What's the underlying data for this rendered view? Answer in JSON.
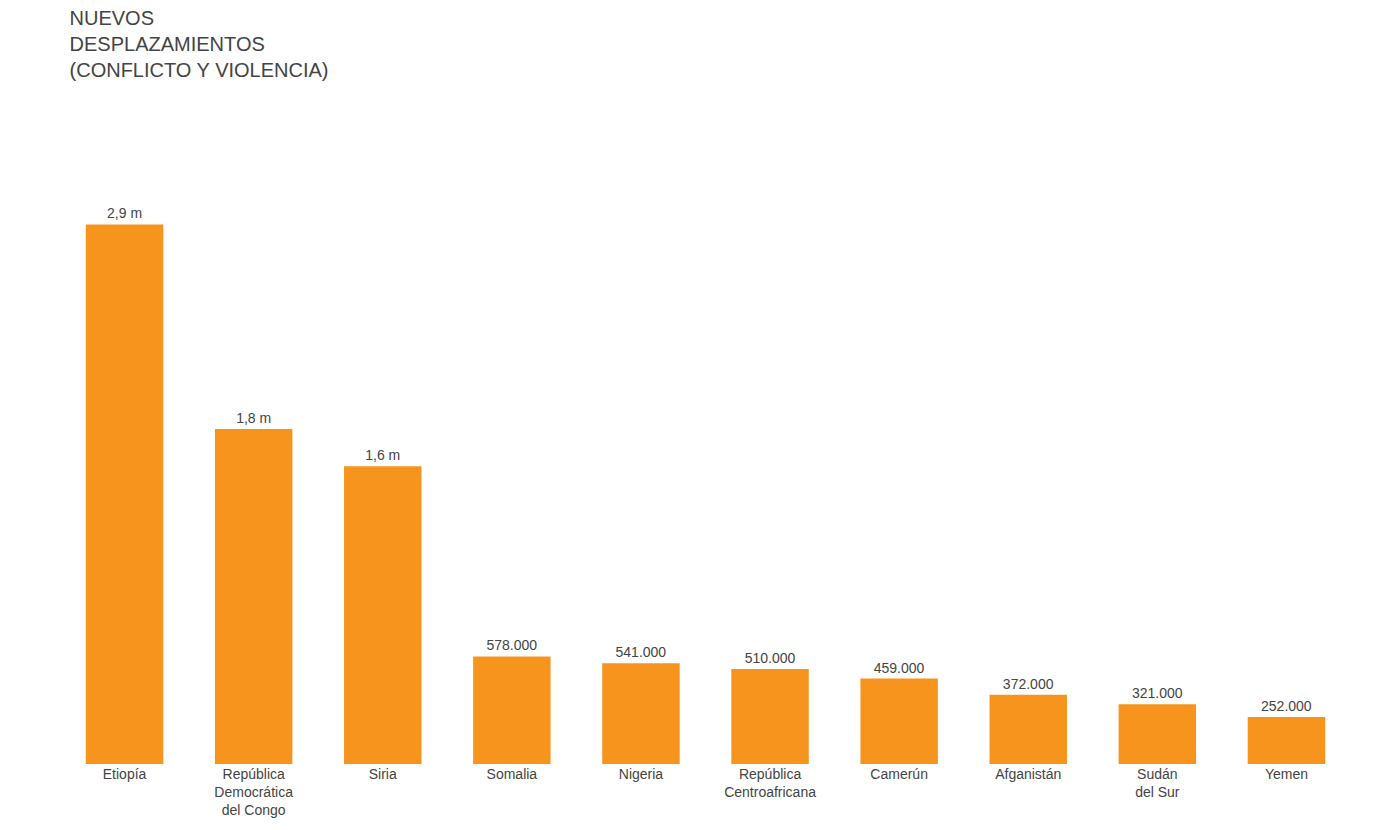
{
  "chart_data": {
    "type": "bar",
    "title": "NUEVOS\nDESPLAZAMIENTOS\n(CONFLICTO Y VIOLENCIA)",
    "categories": [
      "Etiopía",
      "República\nDemocrática\ndel Congo",
      "Siria",
      "Somalia",
      "Nigeria",
      "República\nCentroafricana",
      "Camerún",
      "Afganistán",
      "Sudán\ndel Sur",
      "Yemen"
    ],
    "values": [
      2900000,
      1800000,
      1600000,
      578000,
      541000,
      510000,
      459000,
      372000,
      321000,
      252000
    ],
    "value_labels": [
      "2,9 m",
      "1,8 m",
      "1,6 m",
      "578.000",
      "541.000",
      "510.000",
      "459.000",
      "372.000",
      "321.000",
      "252.000"
    ],
    "data_labels": true,
    "color": "#F7941D",
    "ylim": [
      0,
      3300000
    ],
    "grid": false,
    "tick_labels": "x"
  }
}
